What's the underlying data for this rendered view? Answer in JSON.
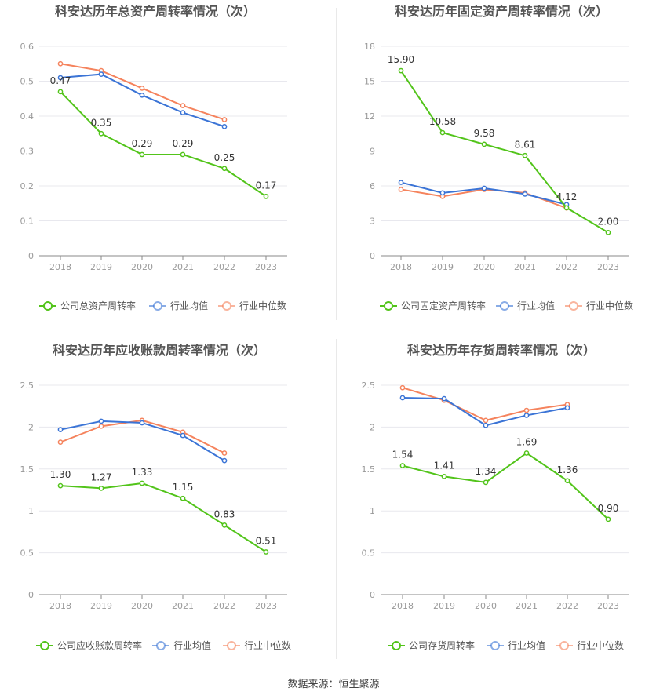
{
  "source_text": "数据来源：恒生聚源",
  "colors": {
    "company": "#52c41a",
    "avg": "#3b74d6",
    "median": "#f5835d",
    "grid": "#e8e8ee",
    "axis": "#999999",
    "title": "#555555"
  },
  "chart_data": [
    {
      "type": "line",
      "title": "科安达历年总资产周转率情况（次）",
      "categories": [
        "2018",
        "2019",
        "2020",
        "2021",
        "2022",
        "2023"
      ],
      "yticks": [
        "0",
        "0.1",
        "0.2",
        "0.3",
        "0.4",
        "0.5",
        "0.6"
      ],
      "ylim": [
        0,
        0.6
      ],
      "legend_position": "bottom",
      "series": [
        {
          "name": "公司总资产周转率",
          "values": [
            0.47,
            0.35,
            0.29,
            0.29,
            0.25,
            0.17
          ],
          "labels": [
            "0.47",
            "0.35",
            "0.29",
            "0.29",
            "0.25",
            "0.17"
          ]
        },
        {
          "name": "行业均值",
          "values": [
            0.51,
            0.52,
            0.46,
            0.41,
            0.37,
            null
          ]
        },
        {
          "name": "行业中位数",
          "values": [
            0.55,
            0.53,
            0.48,
            0.43,
            0.39,
            null
          ]
        }
      ]
    },
    {
      "type": "line",
      "title": "科安达历年固定资产周转率情况（次）",
      "categories": [
        "2018",
        "2019",
        "2020",
        "2021",
        "2022",
        "2023"
      ],
      "yticks": [
        "0",
        "3",
        "6",
        "9",
        "12",
        "15",
        "18"
      ],
      "ylim": [
        0,
        18
      ],
      "legend_position": "bottom",
      "series": [
        {
          "name": "公司固定资产周转率",
          "values": [
            15.9,
            10.58,
            9.58,
            8.61,
            4.12,
            2.0
          ],
          "labels": [
            "15.90",
            "10.58",
            "9.58",
            "8.61",
            "4.12",
            "2.00"
          ]
        },
        {
          "name": "行业均值",
          "values": [
            6.3,
            5.4,
            5.8,
            5.3,
            4.4,
            null
          ]
        },
        {
          "name": "行业中位数",
          "values": [
            5.7,
            5.1,
            5.7,
            5.4,
            4.1,
            null
          ]
        }
      ]
    },
    {
      "type": "line",
      "title": "科安达历年应收账款周转率情况（次）",
      "categories": [
        "2018",
        "2019",
        "2020",
        "2021",
        "2022",
        "2023"
      ],
      "yticks": [
        "0",
        "0.5",
        "1",
        "1.5",
        "2",
        "2.5"
      ],
      "ylim": [
        0,
        2.5
      ],
      "legend_position": "bottom",
      "series": [
        {
          "name": "公司应收账款周转率",
          "values": [
            1.3,
            1.27,
            1.33,
            1.15,
            0.83,
            0.51
          ],
          "labels": [
            "1.30",
            "1.27",
            "1.33",
            "1.15",
            "0.83",
            "0.51"
          ]
        },
        {
          "name": "行业均值",
          "values": [
            1.97,
            2.07,
            2.05,
            1.9,
            1.6,
            null
          ]
        },
        {
          "name": "行业中位数",
          "values": [
            1.82,
            2.01,
            2.08,
            1.94,
            1.69,
            null
          ]
        }
      ]
    },
    {
      "type": "line",
      "title": "科安达历年存货周转率情况（次）",
      "categories": [
        "2018",
        "2019",
        "2020",
        "2021",
        "2022",
        "2023"
      ],
      "yticks": [
        "0",
        "0.5",
        "1",
        "1.5",
        "2",
        "2.5"
      ],
      "ylim": [
        0,
        2.5
      ],
      "legend_position": "bottom",
      "series": [
        {
          "name": "公司存货周转率",
          "values": [
            1.54,
            1.41,
            1.34,
            1.69,
            1.36,
            0.9
          ],
          "labels": [
            "1.54",
            "1.41",
            "1.34",
            "1.69",
            "1.36",
            "0.90"
          ]
        },
        {
          "name": "行业均值",
          "values": [
            2.35,
            2.34,
            2.02,
            2.14,
            2.23,
            null
          ]
        },
        {
          "name": "行业中位数",
          "values": [
            2.47,
            2.32,
            2.08,
            2.2,
            2.27,
            null
          ]
        }
      ]
    }
  ]
}
